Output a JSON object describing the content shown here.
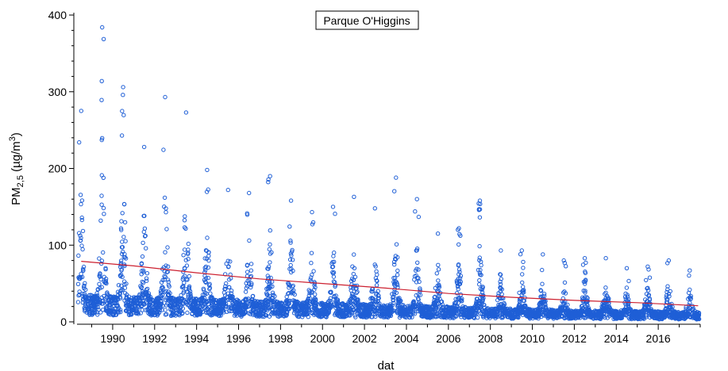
{
  "chart_data": {
    "type": "scatter",
    "title": "Parque O'Higgins",
    "xlabel": "dat",
    "ylabel": {
      "base": "PM",
      "subscript": "2,5",
      "units_prefix": " (µg/m",
      "units_superscript": "3",
      "units_suffix": ")"
    },
    "xlim": [
      1988.3,
      2018.0
    ],
    "ylim": [
      0,
      400
    ],
    "x_ticks": [
      1990,
      1992,
      1994,
      1996,
      1998,
      2000,
      2002,
      2004,
      2006,
      2008,
      2010,
      2012,
      2014,
      2016
    ],
    "y_ticks": [
      0,
      100,
      200,
      300,
      400
    ],
    "grid": false,
    "marker_color": "#1f5fd6",
    "trend_color": "#cc2030",
    "series": [
      {
        "kind": "daily-points",
        "annual_peaks": [
          {
            "year": 1988,
            "peak": 275
          },
          {
            "year": 1989,
            "peak": 384
          },
          {
            "year": 1990,
            "peak": 306
          },
          {
            "year": 1991,
            "peak": 228
          },
          {
            "year": 1992,
            "peak": 293
          },
          {
            "year": 1993,
            "peak": 273
          },
          {
            "year": 1994,
            "peak": 198
          },
          {
            "year": 1995,
            "peak": 172
          },
          {
            "year": 1996,
            "peak": 168
          },
          {
            "year": 1997,
            "peak": 190
          },
          {
            "year": 1998,
            "peak": 158
          },
          {
            "year": 1999,
            "peak": 143
          },
          {
            "year": 2000,
            "peak": 150
          },
          {
            "year": 2001,
            "peak": 163
          },
          {
            "year": 2002,
            "peak": 148
          },
          {
            "year": 2003,
            "peak": 188
          },
          {
            "year": 2004,
            "peak": 160
          },
          {
            "year": 2005,
            "peak": 115
          },
          {
            "year": 2006,
            "peak": 122
          },
          {
            "year": 2007,
            "peak": 158
          },
          {
            "year": 2008,
            "peak": 93
          },
          {
            "year": 2009,
            "peak": 93
          },
          {
            "year": 2010,
            "peak": 88
          },
          {
            "year": 2011,
            "peak": 80
          },
          {
            "year": 2012,
            "peak": 83
          },
          {
            "year": 2013,
            "peak": 83
          },
          {
            "year": 2014,
            "peak": 70
          },
          {
            "year": 2015,
            "peak": 72
          },
          {
            "year": 2016,
            "peak": 80
          },
          {
            "year": 2017,
            "peak": 67
          }
        ],
        "summer_baseline": [
          {
            "year": 1988,
            "low": 22
          },
          {
            "year": 1995,
            "low": 18
          },
          {
            "year": 2002,
            "low": 14
          },
          {
            "year": 2010,
            "low": 10
          },
          {
            "year": 2017,
            "low": 8
          }
        ]
      },
      {
        "kind": "trend-line",
        "x": [
          1988.5,
          1991,
          1994,
          1997,
          2000,
          2003,
          2006,
          2009,
          2012,
          2015,
          2017.9
        ],
        "y": [
          79,
          73,
          64,
          56,
          50,
          44,
          37,
          32,
          28,
          25,
          21
        ]
      }
    ]
  }
}
